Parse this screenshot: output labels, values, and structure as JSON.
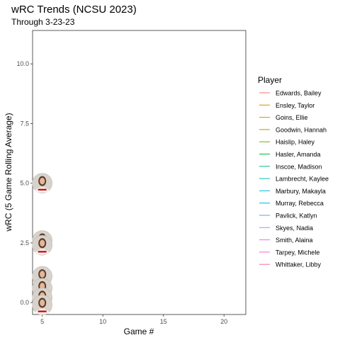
{
  "chart_data": {
    "type": "line",
    "title": "wRC Trends (NCSU 2023)",
    "subtitle": "Through 3-23-23",
    "xlabel": "Game #",
    "ylabel": "wRC (5 Game Rolling Average)",
    "xlim": [
      4.2,
      21.8
    ],
    "ylim": [
      -0.5,
      11.4
    ],
    "x_ticks": [
      5,
      10,
      15,
      20
    ],
    "y_ticks": [
      0.0,
      2.5,
      5.0,
      7.5,
      10.0
    ],
    "x_tick_labels": [
      "5",
      "10",
      "15",
      "20"
    ],
    "y_tick_labels": [
      "0.0",
      "2.5",
      "5.0",
      "7.5",
      "10.0"
    ],
    "grid": false,
    "legend": {
      "title": "Player",
      "position": "right",
      "entries": [
        {
          "name": "Edwards, Bailey",
          "color": "#F8766D"
        },
        {
          "name": "Ensley, Taylor",
          "color": "#E58700"
        },
        {
          "name": "Goins, Ellie",
          "color": "#C99800"
        },
        {
          "name": "Goodwin, Hannah",
          "color": "#A3A500"
        },
        {
          "name": "Haislip, Haley",
          "color": "#6BB100"
        },
        {
          "name": "Hasler, Amanda",
          "color": "#00BA38"
        },
        {
          "name": "Inscoe, Madison",
          "color": "#00BF7D"
        },
        {
          "name": "Lambrecht, Kaylee",
          "color": "#00C0AF"
        },
        {
          "name": "Marbury, Makayla",
          "color": "#00BCD8"
        },
        {
          "name": "Murray, Rebecca",
          "color": "#00B0F6"
        },
        {
          "name": "Pavlick, Katlyn",
          "color": "#619CFF"
        },
        {
          "name": "Skyes, Nadia",
          "color": "#B983FF"
        },
        {
          "name": "Smith, Alaina",
          "color": "#E76BF3"
        },
        {
          "name": "Tarpey, Michele",
          "color": "#FD61D1"
        },
        {
          "name": "Whittaker, Libby",
          "color": "#FF67A4"
        }
      ]
    },
    "points": [
      {
        "x": 5,
        "y": 5.0
      },
      {
        "x": 5,
        "y": 2.6
      },
      {
        "x": 5,
        "y": 2.4
      },
      {
        "x": 5,
        "y": 1.1
      },
      {
        "x": 5,
        "y": 0.6
      },
      {
        "x": 5,
        "y": 0.2
      },
      {
        "x": 5,
        "y": -0.1
      }
    ]
  }
}
